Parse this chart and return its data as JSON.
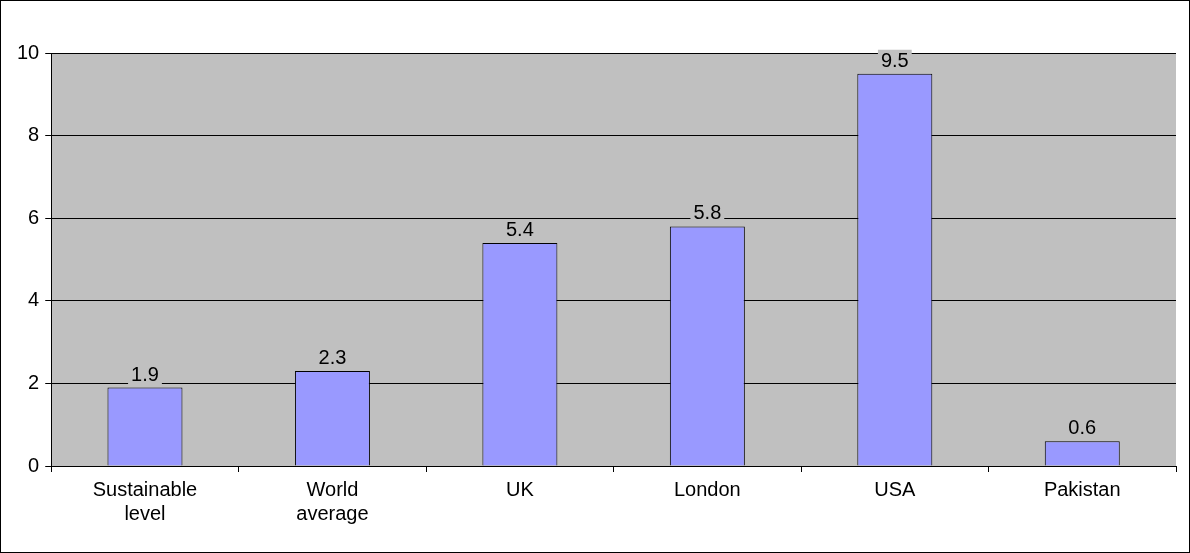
{
  "chart_data": {
    "type": "bar",
    "categories": [
      "Sustainable level",
      "World average",
      "UK",
      "London",
      "USA",
      "Pakistan"
    ],
    "values": [
      1.9,
      2.3,
      5.4,
      5.8,
      9.5,
      0.6
    ],
    "color": "#9999ff",
    "ylim": [
      0,
      10
    ],
    "yticks": [
      0,
      2,
      4,
      6,
      8,
      10
    ],
    "grid": "y",
    "legend": false,
    "data_labels": true
  }
}
